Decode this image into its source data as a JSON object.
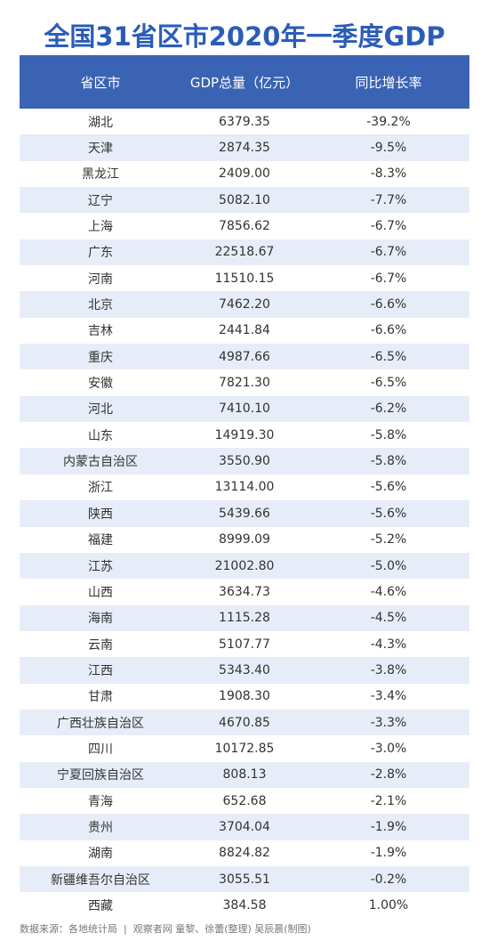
{
  "header": {
    "title": "全国31省区市2020年一季度GDP"
  },
  "table": {
    "columns": [
      "省区市",
      "GDP总量（亿元）",
      "同比增长率"
    ],
    "rows": [
      [
        "湖北",
        "6379.35",
        "-39.2%"
      ],
      [
        "天津",
        "2874.35",
        "-9.5%"
      ],
      [
        "黑龙江",
        "2409.00",
        "-8.3%"
      ],
      [
        "辽宁",
        "5082.10",
        "-7.7%"
      ],
      [
        "上海",
        "7856.62",
        "-6.7%"
      ],
      [
        "广东",
        "22518.67",
        "-6.7%"
      ],
      [
        "河南",
        "11510.15",
        "-6.7%"
      ],
      [
        "北京",
        "7462.20",
        "-6.6%"
      ],
      [
        "吉林",
        "2441.84",
        "-6.6%"
      ],
      [
        "重庆",
        "4987.66",
        "-6.5%"
      ],
      [
        "安徽",
        "7821.30",
        "-6.5%"
      ],
      [
        "河北",
        "7410.10",
        "-6.2%"
      ],
      [
        "山东",
        "14919.30",
        "-5.8%"
      ],
      [
        "内蒙古自治区",
        "3550.90",
        "-5.8%"
      ],
      [
        "浙江",
        "13114.00",
        "-5.6%"
      ],
      [
        "陕西",
        "5439.66",
        "-5.6%"
      ],
      [
        "福建",
        "8999.09",
        "-5.2%"
      ],
      [
        "江苏",
        "21002.80",
        "-5.0%"
      ],
      [
        "山西",
        "3634.73",
        "-4.6%"
      ],
      [
        "海南",
        "1115.28",
        "-4.5%"
      ],
      [
        "云南",
        "5107.77",
        "-4.3%"
      ],
      [
        "江西",
        "5343.40",
        "-3.8%"
      ],
      [
        "甘肃",
        "1908.30",
        "-3.4%"
      ],
      [
        "广西壮族自治区",
        "4670.85",
        "-3.3%"
      ],
      [
        "四川",
        "10172.85",
        "-3.0%"
      ],
      [
        "宁夏回族自治区",
        "808.13",
        "-2.8%"
      ],
      [
        "青海",
        "652.68",
        "-2.1%"
      ],
      [
        "贵州",
        "3704.04",
        "-1.9%"
      ],
      [
        "湖南",
        "8824.82",
        "-1.9%"
      ],
      [
        "新疆维吾尔自治区",
        "3055.51",
        "-0.2%"
      ],
      [
        "西藏",
        "384.58",
        "1.00%"
      ]
    ]
  },
  "footer": {
    "source": "数据来源：各地统计局  |  观察者网 童黎、徐蕾(整理) 吴辰晨(制图)"
  }
}
